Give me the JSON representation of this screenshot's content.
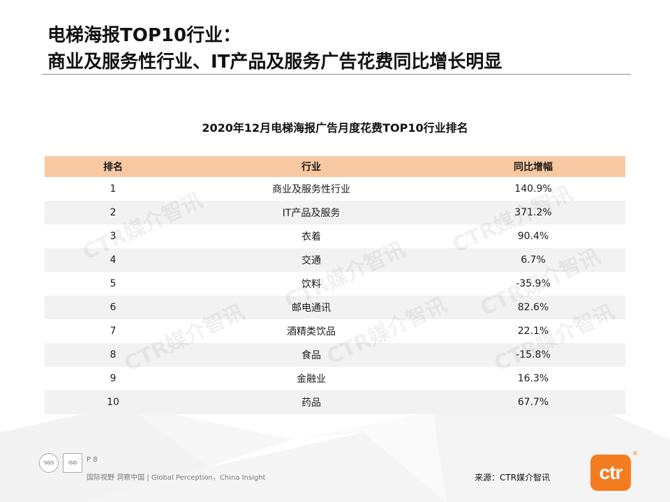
{
  "header": {
    "title_line1": "电梯海报TOP10行业：",
    "title_line2": "商业及服务性行业、IT产品及服务广告花费同比增长明显"
  },
  "table": {
    "title": "2020年12月电梯海报广告月度花费TOP10行业排名",
    "columns": [
      "排名",
      "行业",
      "同比增幅"
    ],
    "rows": [
      {
        "rank": "1",
        "industry": "商业及服务性行业",
        "growth": "140.9%"
      },
      {
        "rank": "2",
        "industry": "IT产品及服务",
        "growth": "371.2%"
      },
      {
        "rank": "3",
        "industry": "衣着",
        "growth": "90.4%"
      },
      {
        "rank": "4",
        "industry": "交通",
        "growth": "6.7%"
      },
      {
        "rank": "5",
        "industry": "饮料",
        "growth": "-35.9%"
      },
      {
        "rank": "6",
        "industry": "邮电通讯",
        "growth": "82.6%"
      },
      {
        "rank": "7",
        "industry": "酒精类饮品",
        "growth": "22.1%"
      },
      {
        "rank": "8",
        "industry": "食品",
        "growth": "-15.8%"
      },
      {
        "rank": "9",
        "industry": "金融业",
        "growth": "16.3%"
      },
      {
        "rank": "10",
        "industry": "药品",
        "growth": "67.7%"
      }
    ]
  },
  "watermark": "CTR媒介智讯",
  "footer": {
    "page": "P 8",
    "tagline": "国际视野 洞察中国 | Global Perception，China Insight",
    "source": "来源：CTR媒介智讯",
    "logo_text": "ctr",
    "logo_reg": "®",
    "badge_left": "SGS",
    "badge_right": "ISO"
  },
  "colors": {
    "header_row": "#f8c8a2",
    "alt_row": "#f2f2f2",
    "logo": "#f47c20"
  }
}
